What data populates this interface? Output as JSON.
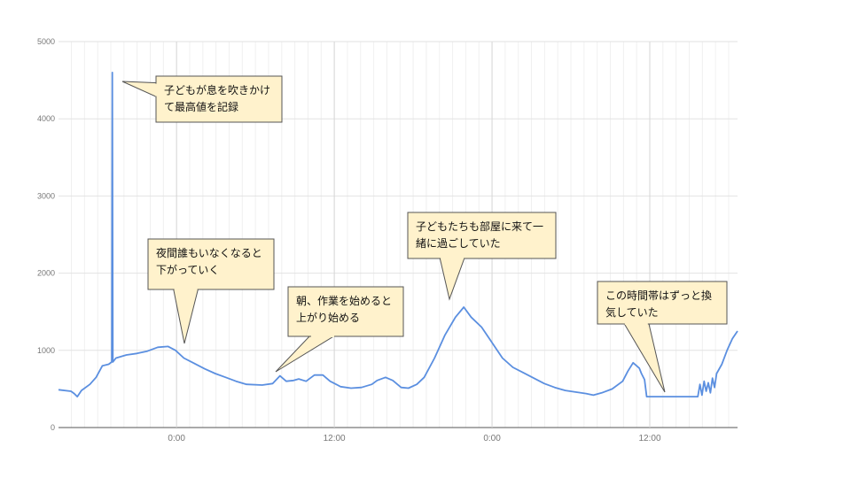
{
  "chart_data": {
    "type": "line",
    "series": [
      {
        "color": "#5b8fe0",
        "points": [
          [
            0,
            490
          ],
          [
            1.2,
            470
          ],
          [
            1.5,
            440
          ],
          [
            1.8,
            400
          ],
          [
            2.2,
            480
          ],
          [
            3.0,
            560
          ],
          [
            3.6,
            650
          ],
          [
            4.2,
            800
          ],
          [
            4.8,
            820
          ],
          [
            5.1,
            850
          ],
          [
            5.15,
            4600
          ],
          [
            5.2,
            850
          ],
          [
            5.5,
            900
          ],
          [
            6.5,
            940
          ],
          [
            7.5,
            960
          ],
          [
            8.5,
            990
          ],
          [
            9.5,
            1040
          ],
          [
            10.5,
            1050
          ],
          [
            11.2,
            1000
          ],
          [
            12,
            900
          ],
          [
            13,
            830
          ],
          [
            14,
            760
          ],
          [
            15,
            700
          ],
          [
            16,
            650
          ],
          [
            17,
            600
          ],
          [
            18,
            560
          ],
          [
            19.5,
            550
          ],
          [
            20.5,
            570
          ],
          [
            21.2,
            670
          ],
          [
            21.8,
            600
          ],
          [
            22.5,
            610
          ],
          [
            23,
            630
          ],
          [
            23.7,
            600
          ],
          [
            24.5,
            680
          ],
          [
            25.3,
            680
          ],
          [
            26,
            600
          ],
          [
            27,
            530
          ],
          [
            28,
            510
          ],
          [
            29,
            520
          ],
          [
            30,
            560
          ],
          [
            30.5,
            610
          ],
          [
            31.3,
            650
          ],
          [
            32,
            610
          ],
          [
            32.8,
            520
          ],
          [
            33.5,
            510
          ],
          [
            34.3,
            560
          ],
          [
            35,
            650
          ],
          [
            36,
            900
          ],
          [
            37,
            1200
          ],
          [
            38,
            1430
          ],
          [
            38.8,
            1560
          ],
          [
            39.5,
            1430
          ],
          [
            40.5,
            1300
          ],
          [
            41.5,
            1100
          ],
          [
            42.5,
            900
          ],
          [
            43.5,
            780
          ],
          [
            44.5,
            710
          ],
          [
            45.5,
            640
          ],
          [
            46.5,
            570
          ],
          [
            47.5,
            520
          ],
          [
            48.5,
            480
          ],
          [
            49.5,
            460
          ],
          [
            50.5,
            440
          ],
          [
            51.2,
            420
          ],
          [
            52,
            450
          ],
          [
            53,
            500
          ],
          [
            54,
            600
          ],
          [
            54.5,
            730
          ],
          [
            55,
            840
          ],
          [
            55.6,
            770
          ],
          [
            55.8,
            700
          ],
          [
            56.1,
            620
          ],
          [
            56.3,
            400
          ],
          [
            57,
            400
          ],
          [
            59,
            400
          ],
          [
            60.5,
            400
          ],
          [
            61.2,
            400
          ],
          [
            61.4,
            560
          ],
          [
            61.6,
            420
          ],
          [
            61.8,
            600
          ],
          [
            62,
            470
          ],
          [
            62.2,
            580
          ],
          [
            62.4,
            450
          ],
          [
            62.6,
            640
          ],
          [
            62.8,
            520
          ],
          [
            63,
            700
          ],
          [
            63.5,
            820
          ],
          [
            64,
            1000
          ],
          [
            64.5,
            1150
          ],
          [
            65,
            1250
          ]
        ]
      }
    ],
    "xlim": [
      0,
      65
    ],
    "ylim": [
      0,
      5000
    ],
    "y_ticks": [
      0,
      1000,
      2000,
      3000,
      4000,
      5000
    ],
    "x_ticks": [
      {
        "x": 11.3,
        "label": "0:00"
      },
      {
        "x": 26.4,
        "label": "12:00"
      },
      {
        "x": 41.5,
        "label": "0:00"
      },
      {
        "x": 56.6,
        "label": "12:00"
      }
    ],
    "grid": true,
    "annotations": [
      {
        "lines": [
          "子どもが息を吹きかけ",
          "て最高値を記録"
        ]
      },
      {
        "lines": [
          "夜間誰もいなくなると",
          "下がっていく"
        ]
      },
      {
        "lines": [
          "朝、作業を始めると",
          "上がり始める"
        ]
      },
      {
        "lines": [
          "子どもたちも部屋に来て一",
          "緒に過ごしていた"
        ]
      },
      {
        "lines": [
          "この時間帯はずっと換",
          "気していた"
        ]
      }
    ]
  }
}
